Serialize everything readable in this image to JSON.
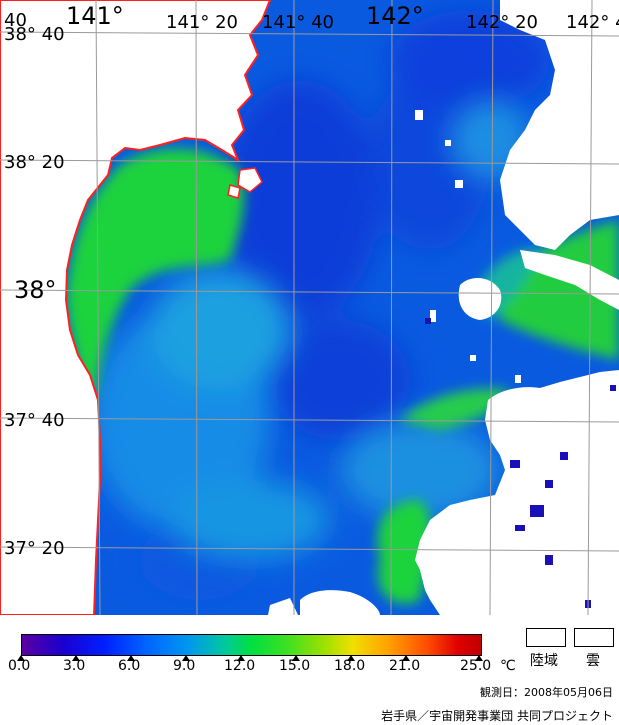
{
  "colors": {
    "land": "#ffffff",
    "coastline": "#ff2020",
    "grid": "#9a9a9a"
  },
  "grid_labels": {
    "lon": [
      "141°",
      "141° 20",
      "141° 40",
      "142°",
      "142° 20",
      "142° 4"
    ],
    "lat": [
      "38° 40",
      "38° 20",
      "38°",
      "37° 40",
      "37° 20"
    ],
    "corner": "40"
  },
  "scale": {
    "ticks": [
      "0.0",
      "3.0",
      "6.0",
      "9.0",
      "12.0",
      "15.0",
      "18.0",
      "21.0",
      "25.0"
    ],
    "unit": "℃"
  },
  "legend": {
    "land": "陸域",
    "cloud": "雲"
  },
  "observation": "観測日：2008年05月06日",
  "credit": "岩手県／宇宙開発事業団 共同プロジェクト"
}
